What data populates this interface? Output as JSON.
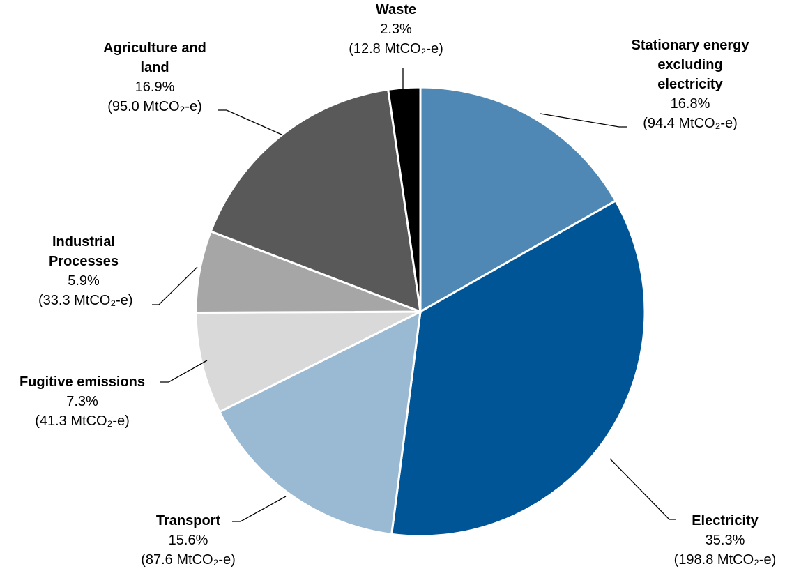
{
  "chart_data": {
    "type": "pie",
    "categories": [
      "Stationary energy excluding electricity",
      "Electricity",
      "Transport",
      "Fugitive emissions",
      "Industrial Processes",
      "Agriculture and land",
      "Waste"
    ],
    "values": [
      16.8,
      35.3,
      15.6,
      7.3,
      5.9,
      16.9,
      2.3
    ],
    "value_labels": [
      "16.8%",
      "35.3%",
      "15.6%",
      "7.3%",
      "5.9%",
      "16.9%",
      "2.3%"
    ],
    "emission_labels": [
      "(94.4 MtCO₂-e)",
      "(198.8 MtCO₂-e)",
      "(87.6 MtCO₂-e)",
      "(41.3 MtCO₂-e)",
      "(33.3 MtCO₂-e)",
      "(95.0 MtCO₂-e)",
      "(12.8 MtCO₂-e)"
    ],
    "colors": [
      "#4f88b5",
      "#005596",
      "#9ab9d3",
      "#d9d9d9",
      "#a6a6a6",
      "#595959",
      "#000000"
    ]
  }
}
